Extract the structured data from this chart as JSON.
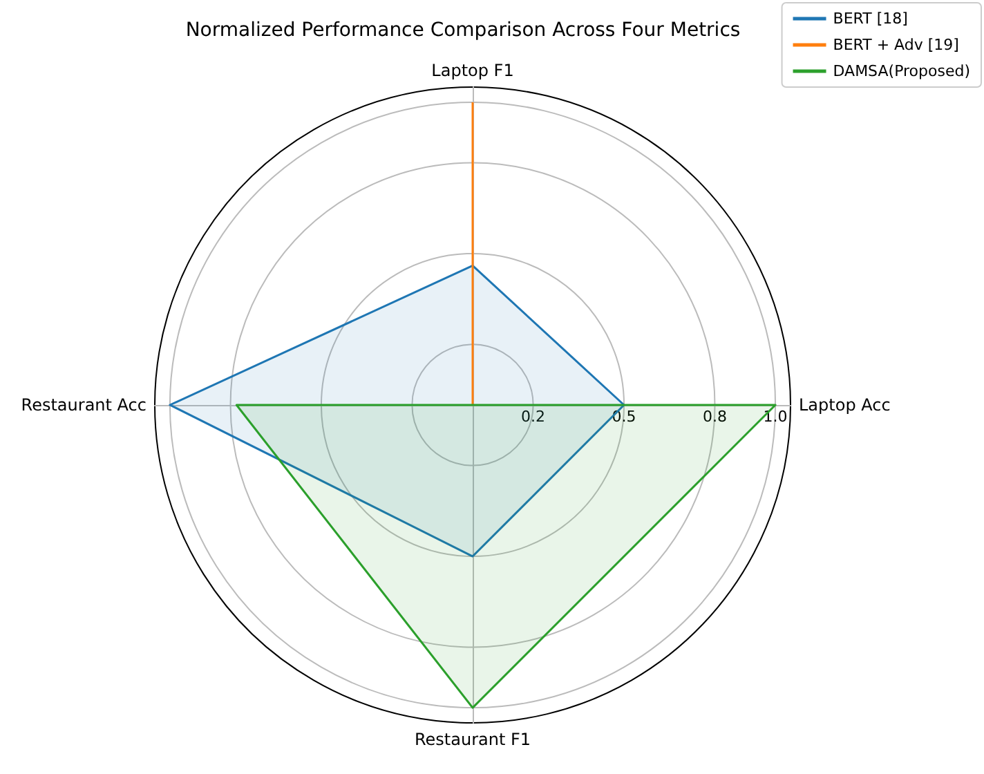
{
  "chart_data": {
    "type": "radar",
    "title": "Normalized Performance Comparison Across Four Metrics",
    "categories": [
      "Laptop F1",
      "Laptop Acc",
      "Restaurant F1",
      "Restaurant Acc"
    ],
    "series": [
      {
        "name": "BERT [18]",
        "color": "#1f77b4",
        "values": [
          0.46,
          0.5,
          0.5,
          1.0
        ]
      },
      {
        "name": "BERT + Adv [19]",
        "color": "#ff7f0e",
        "values": [
          1.0,
          0,
          0,
          0
        ]
      },
      {
        "name": "DAMSA(Proposed)",
        "color": "#2ca02c",
        "values": [
          0,
          1.0,
          1.0,
          0.78
        ]
      }
    ],
    "ylim": [
      0,
      1.05
    ],
    "yticks": [
      0.2,
      0.5,
      0.8,
      {
        "value": 1,
        "label": "1.0"
      }
    ],
    "grid": true,
    "legend": "top right",
    "marker": "none"
  }
}
